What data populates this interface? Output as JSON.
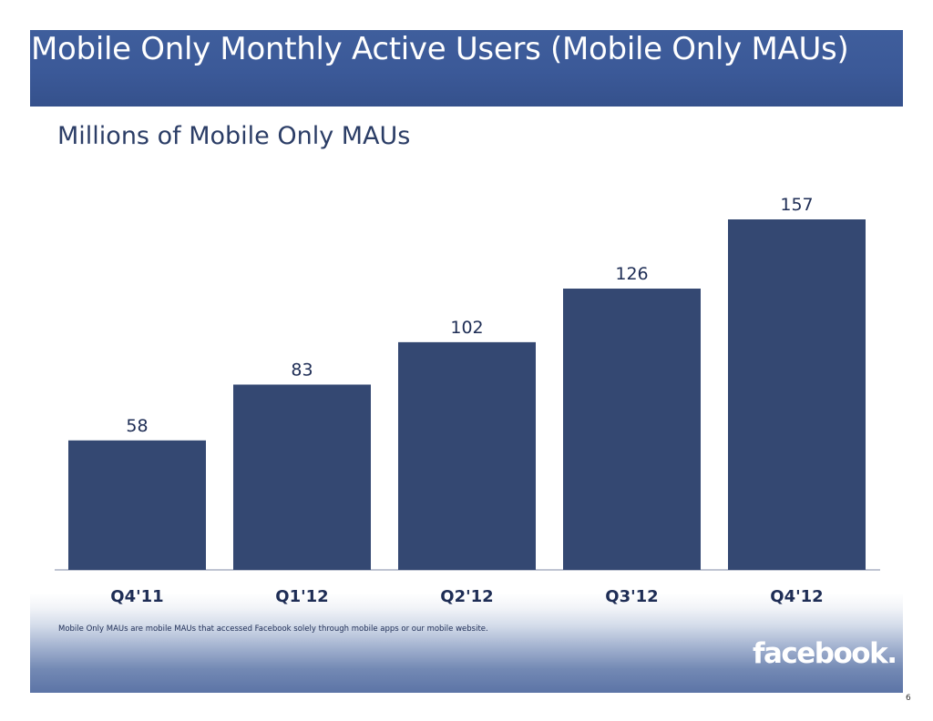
{
  "slide": {
    "title": "Mobile Only Monthly Active Users (Mobile Only MAUs)",
    "subtitle": "Millions of Mobile Only MAUs",
    "footnote": "Mobile Only MAUs are mobile MAUs that accessed Facebook solely through mobile apps or our mobile website.",
    "logo_text": "facebook.",
    "page_number": "6"
  },
  "colors": {
    "header": "#3b5998",
    "bar": "#344872",
    "text_dark": "#1e2d55"
  },
  "chart_data": {
    "type": "bar",
    "title": "Millions of Mobile Only MAUs",
    "categories": [
      "Q4'11",
      "Q1'12",
      "Q2'12",
      "Q3'12",
      "Q4'12"
    ],
    "values": [
      58,
      83,
      102,
      126,
      157
    ],
    "xlabel": "",
    "ylabel": "",
    "ylim": [
      0,
      157
    ],
    "grid": false,
    "legend": "none",
    "data_labels": true
  }
}
